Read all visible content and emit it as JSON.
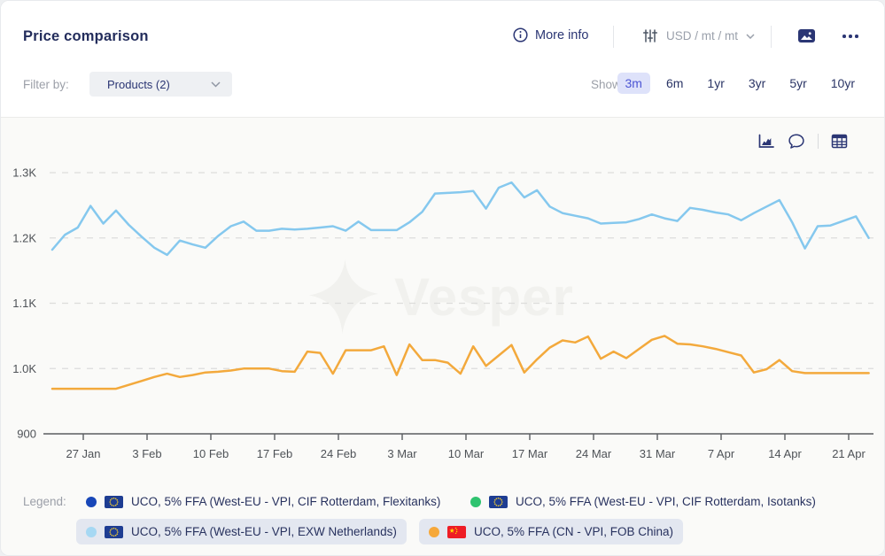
{
  "header": {
    "title": "Price comparison",
    "more_info_label": "More info",
    "unit_value": "USD / mt / mt",
    "filter_label": "Filter by:",
    "filter_value": "Products (2)",
    "show_label": "Show:",
    "ranges": [
      {
        "label": "3m",
        "active": true
      },
      {
        "label": "6m",
        "active": false
      },
      {
        "label": "1yr",
        "active": false
      },
      {
        "label": "3yr",
        "active": false
      },
      {
        "label": "5yr",
        "active": false
      },
      {
        "label": "10yr",
        "active": false
      }
    ],
    "icons": [
      "info-icon",
      "sliders-icon",
      "chevron-down-icon",
      "image-export-icon",
      "ellipsis-icon"
    ]
  },
  "toolbar": {
    "icons": [
      "area-chart-icon",
      "comments-icon",
      "data-table-icon"
    ]
  },
  "chart_data": {
    "type": "line",
    "title": "",
    "xlabel": "",
    "ylabel": "",
    "ylim": [
      900,
      1300
    ],
    "grid": "dashed-horizontal",
    "legend_position": "bottom",
    "watermark": "Vesper",
    "y_ticks": [
      {
        "value": 1300,
        "label": "1.3K"
      },
      {
        "value": 1200,
        "label": "1.2K"
      },
      {
        "value": 1100,
        "label": "1.1K"
      },
      {
        "value": 1000,
        "label": "1.0K"
      },
      {
        "value": 900,
        "label": "900"
      }
    ],
    "x_ticks": [
      "27 Jan",
      "3 Feb",
      "10 Feb",
      "17 Feb",
      "24 Feb",
      "3 Mar",
      "10 Mar",
      "17 Mar",
      "24 Mar",
      "31 Mar",
      "7 Apr",
      "14 Apr",
      "21 Apr"
    ],
    "series": [
      {
        "name": "UCO, 5% FFA (West-EU - VPI, EXW Netherlands)",
        "color": "#85c8ee",
        "values": [
          1182,
          1205,
          1216,
          1249,
          1222,
          1242,
          1220,
          1202,
          1185,
          1174,
          1196,
          1190,
          1185,
          1203,
          1218,
          1225,
          1211,
          1211,
          1214,
          1213,
          1214,
          1216,
          1218,
          1211,
          1225,
          1212,
          1212,
          1212,
          1224,
          1240,
          1268,
          1269,
          1270,
          1272,
          1245,
          1277,
          1285,
          1262,
          1273,
          1248,
          1238,
          1234,
          1230,
          1222,
          1223,
          1224,
          1229,
          1236,
          1230,
          1226,
          1246,
          1243,
          1239,
          1236,
          1227,
          1238,
          1248,
          1258,
          1224,
          1184,
          1218,
          1219,
          1226,
          1233,
          1200
        ]
      },
      {
        "name": "UCO, 5% FFA (CN - VPI, FOB China)",
        "color": "#f3a93c",
        "values": [
          969,
          969,
          969,
          969,
          969,
          969,
          975,
          981,
          987,
          992,
          987,
          990,
          994,
          995,
          997,
          1000,
          1000,
          1000,
          996,
          995,
          1026,
          1024,
          992,
          1028,
          1028,
          1028,
          1034,
          990,
          1037,
          1013,
          1013,
          1009,
          992,
          1034,
          1004,
          1020,
          1036,
          994,
          1014,
          1032,
          1043,
          1040,
          1049,
          1015,
          1026,
          1016,
          1030,
          1044,
          1050,
          1038,
          1037,
          1034,
          1030,
          1025,
          1020,
          994,
          999,
          1013,
          996,
          993,
          993,
          993,
          993,
          993,
          993
        ]
      }
    ]
  },
  "legend": {
    "label": "Legend:",
    "items": [
      {
        "dot_color": "#1847b8",
        "flag": "eu",
        "label": "UCO, 5% FFA (West-EU - VPI, CIF Rotterdam, Flexitanks)",
        "active": false
      },
      {
        "dot_color": "#2fc36f",
        "flag": "eu",
        "label": "UCO, 5% FFA (West-EU - VPI, CIF Rotterdam, Isotanks)",
        "active": false
      },
      {
        "dot_color": "#a6d8f3",
        "flag": "eu",
        "label": "UCO, 5% FFA (West-EU - VPI, EXW Netherlands)",
        "active": true
      },
      {
        "dot_color": "#f6a83a",
        "flag": "cn",
        "label": "UCO, 5% FFA (CN - VPI, FOB China)",
        "active": true
      }
    ]
  },
  "colors": {
    "active_range_bg": "#dee2fa",
    "active_range_text": "#4c55d4",
    "panel_bg": "#fafaf8",
    "legend_pill_bg": "#e3e7f0",
    "axis_text": "#4e5257",
    "gridline": "#dddddb"
  }
}
